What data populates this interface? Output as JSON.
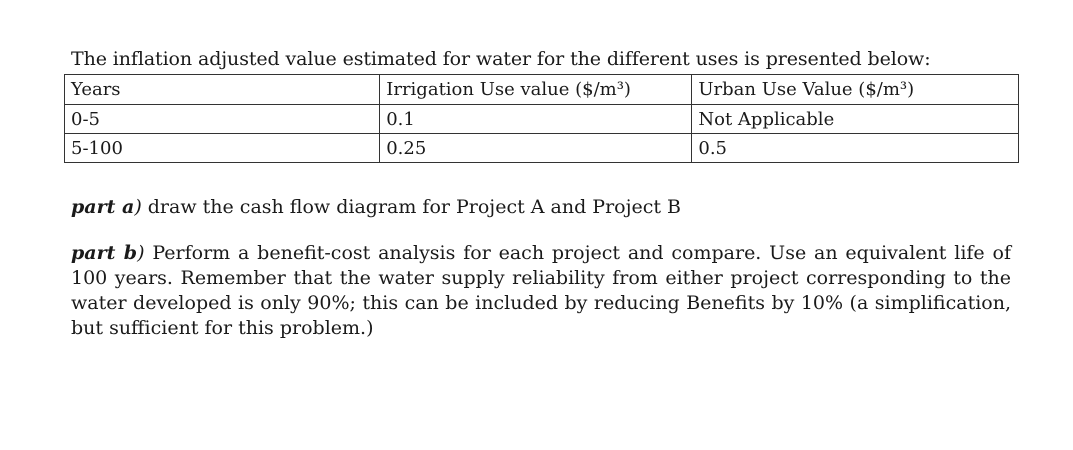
{
  "intro": "The inflation adjusted value estimated for water for the different uses is presented below:",
  "table": {
    "headers": [
      "Years",
      "Irrigation Use value ($/m³)",
      "Urban Use Value ($/m³)"
    ],
    "rows": [
      [
        "0-5",
        "0.1",
        "Not Applicable"
      ],
      [
        "5-100",
        "0.25",
        "0.5"
      ]
    ]
  },
  "part_a": {
    "label": "part a",
    "paren": ")",
    "text": " draw the cash flow diagram for Project A and Project B"
  },
  "part_b": {
    "label": "part b",
    "paren": ")",
    "text": " Perform a benefit-cost analysis for each project and compare.  Use an equivalent life of 100 years.   Remember that the water supply reliability from either project corresponding to the water developed is only 90%; this can be included by reducing Benefits by 10% (a simplification, but sufficient for this problem.)"
  }
}
